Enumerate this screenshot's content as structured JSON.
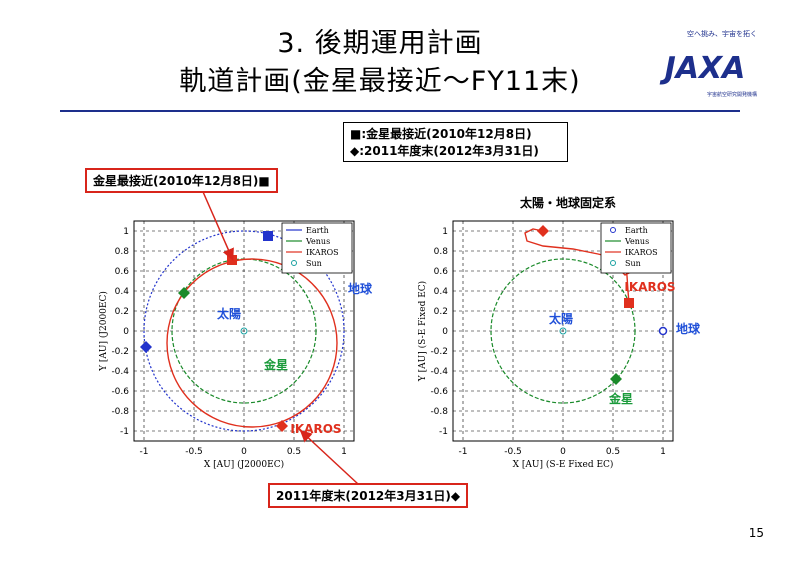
{
  "slide": {
    "title_line1": "3. 後期運用計画",
    "title_line2": "軌道計画(金星最接近〜FY11末)",
    "page_number": "15"
  },
  "logo": {
    "text": "JAXA",
    "tagline": "空へ挑み、宇宙を拓く",
    "org": "宇宙航空研究開発機構"
  },
  "legend_box": {
    "line1": "■:金星最接近(2010年12月8日)",
    "line2": "◆:2011年度末(2012年3月31日)"
  },
  "callouts": {
    "venus_approach": "金星最接近(2010年12月8日)■",
    "fy_end": "2011年度末(2012年3月31日)◆"
  },
  "colors": {
    "earth": "#2233cc",
    "venus": "#1a8a2a",
    "ikaros": "#e0301e",
    "sun": "#17a0a0",
    "labels_blue": "#1f4fd8",
    "green_label": "#1a9a3a"
  },
  "chart_data": [
    {
      "type": "line",
      "title": "",
      "xlabel": "X [AU] (J2000EC)",
      "ylabel": "Y [AU] (J2000EC)",
      "xlim": [
        -1.1,
        1.1
      ],
      "ylim": [
        -1.1,
        1.1
      ],
      "xticks": [
        "-1",
        "-0.5",
        "0",
        "0.5",
        "1"
      ],
      "yticks": [
        "1",
        "0.8",
        "0.6",
        "0.4",
        "0.2",
        "0",
        "-0.2",
        "-0.4",
        "-0.6",
        "-0.8",
        "-1"
      ],
      "grid": true,
      "legend": [
        "Earth",
        "Venus",
        "IKAROS",
        "Sun"
      ],
      "legend_position": "top-right",
      "annotations": {
        "sun": "太陽",
        "venus": "金星",
        "earth": "地球",
        "ikaros": "IKAROS"
      },
      "series": [
        {
          "name": "Earth",
          "shape": "circle",
          "center": [
            0,
            0
          ],
          "radius": 1.0
        },
        {
          "name": "Venus",
          "shape": "circle",
          "center": [
            0,
            0
          ],
          "radius": 0.72
        },
        {
          "name": "IKAROS",
          "shape": "ellipse",
          "center": [
            0.08,
            -0.12
          ],
          "radii": [
            0.85,
            0.84
          ]
        },
        {
          "name": "Sun",
          "points": [
            [
              0,
              0
            ]
          ]
        }
      ],
      "markers": [
        {
          "series": "Earth",
          "kind": "square",
          "x": 0.24,
          "y": 0.95
        },
        {
          "series": "IKAROS",
          "kind": "square",
          "x": -0.12,
          "y": 0.71
        },
        {
          "series": "Venus",
          "kind": "diamond",
          "x": -0.6,
          "y": 0.38
        },
        {
          "series": "Earth",
          "kind": "diamond",
          "x": -0.98,
          "y": -0.16
        },
        {
          "series": "IKAROS",
          "kind": "diamond",
          "x": 0.38,
          "y": -0.95
        }
      ]
    },
    {
      "type": "line",
      "title": "太陽・地球固定系",
      "xlabel": "X [AU] (S-E Fixed EC)",
      "ylabel": "Y [AU] (S-E Fixed EC)",
      "xlim": [
        -1.1,
        1.1
      ],
      "ylim": [
        -1.1,
        1.1
      ],
      "xticks": [
        "-1",
        "-0.5",
        "0",
        "0.5",
        "1"
      ],
      "yticks": [
        "1",
        "0.8",
        "0.6",
        "0.4",
        "0.2",
        "0",
        "-0.2",
        "-0.4",
        "-0.6",
        "-0.8",
        "-1"
      ],
      "grid": true,
      "legend": [
        "Earth",
        "Venus",
        "IKAROS",
        "Sun"
      ],
      "legend_position": "top-right",
      "annotations": {
        "sun": "太陽",
        "venus": "金星",
        "earth": "地球",
        "ikaros": "IKAROS"
      },
      "series": [
        {
          "name": "Earth",
          "points": [
            [
              1,
              0
            ]
          ]
        },
        {
          "name": "Venus",
          "shape": "circle",
          "center": [
            0,
            0
          ],
          "radius": 0.72
        },
        {
          "name": "IKAROS",
          "points": [
            [
              -0.2,
              1.0
            ],
            [
              -0.3,
              1.02
            ],
            [
              -0.38,
              0.98
            ],
            [
              -0.36,
              0.9
            ],
            [
              -0.2,
              0.85
            ],
            [
              0.1,
              0.82
            ],
            [
              0.35,
              0.77
            ],
            [
              0.55,
              0.72
            ],
            [
              0.6,
              0.65
            ],
            [
              0.58,
              0.6
            ],
            [
              0.62,
              0.56
            ],
            [
              0.7,
              0.6
            ],
            [
              0.75,
              0.7
            ],
            [
              0.72,
              0.78
            ],
            [
              0.65,
              0.75
            ],
            [
              0.62,
              0.66
            ],
            [
              0.64,
              0.55
            ],
            [
              0.65,
              0.4
            ],
            [
              0.66,
              0.28
            ]
          ]
        },
        {
          "name": "Sun",
          "points": [
            [
              0,
              0
            ]
          ]
        }
      ],
      "markers": [
        {
          "series": "IKAROS",
          "kind": "diamond",
          "x": -0.2,
          "y": 1.0
        },
        {
          "series": "IKAROS",
          "kind": "square",
          "x": 0.66,
          "y": 0.28
        },
        {
          "series": "Earth",
          "kind": "circle",
          "x": 1.0,
          "y": 0.0
        },
        {
          "series": "Venus",
          "kind": "diamond",
          "x": 0.53,
          "y": -0.48
        }
      ]
    }
  ]
}
